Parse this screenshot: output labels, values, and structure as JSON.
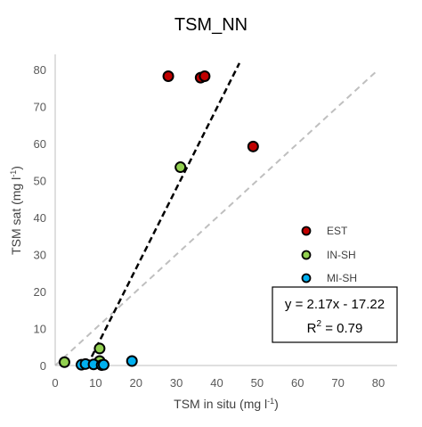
{
  "chart_data": {
    "type": "scatter",
    "title": "TSM_NN",
    "xlabel": "TSM in situ (mg l",
    "xlabel_sup": "-1",
    "xlabel_close": ")",
    "ylabel": "TSM sat (mg l",
    "ylabel_sup": "-1",
    "ylabel_close": ")",
    "xlim": [
      0,
      80
    ],
    "ylim": [
      0,
      80
    ],
    "xticks": [
      0,
      10,
      20,
      30,
      40,
      50,
      60,
      70,
      80
    ],
    "yticks": [
      0,
      10,
      20,
      30,
      40,
      50,
      60,
      70,
      80
    ],
    "grid": false,
    "legend_position": "right",
    "series": [
      {
        "name": "EST",
        "color": "#c00000",
        "points": [
          [
            28,
            78.2
          ],
          [
            36,
            77.8
          ],
          [
            37,
            78.2
          ],
          [
            49,
            59.2
          ]
        ]
      },
      {
        "name": "IN-SH",
        "color": "#92d050",
        "points": [
          [
            2.3,
            0.9
          ],
          [
            11,
            4.6
          ],
          [
            11,
            1.2
          ],
          [
            31,
            53.6
          ]
        ]
      },
      {
        "name": "MI-SH",
        "color": "#00b0f0",
        "points": [
          [
            6.5,
            0.2
          ],
          [
            7.5,
            0.4
          ],
          [
            9.5,
            0.3
          ],
          [
            11.5,
            0.1
          ],
          [
            12,
            0.2
          ],
          [
            19,
            1.2
          ]
        ]
      }
    ],
    "regression": {
      "slope": 2.17,
      "intercept": -17.22,
      "x_range": [
        7.94,
        45.6
      ],
      "color": "#000000",
      "dash": true
    },
    "identity_line": {
      "x_range": [
        0,
        80
      ],
      "color": "#bfbfbf",
      "dash": true
    },
    "annotation": {
      "line1": "y = 2.17x - 17.22",
      "line2_prefix": "R",
      "line2_sup": "2",
      "line2_suffix": " = 0.79"
    }
  }
}
